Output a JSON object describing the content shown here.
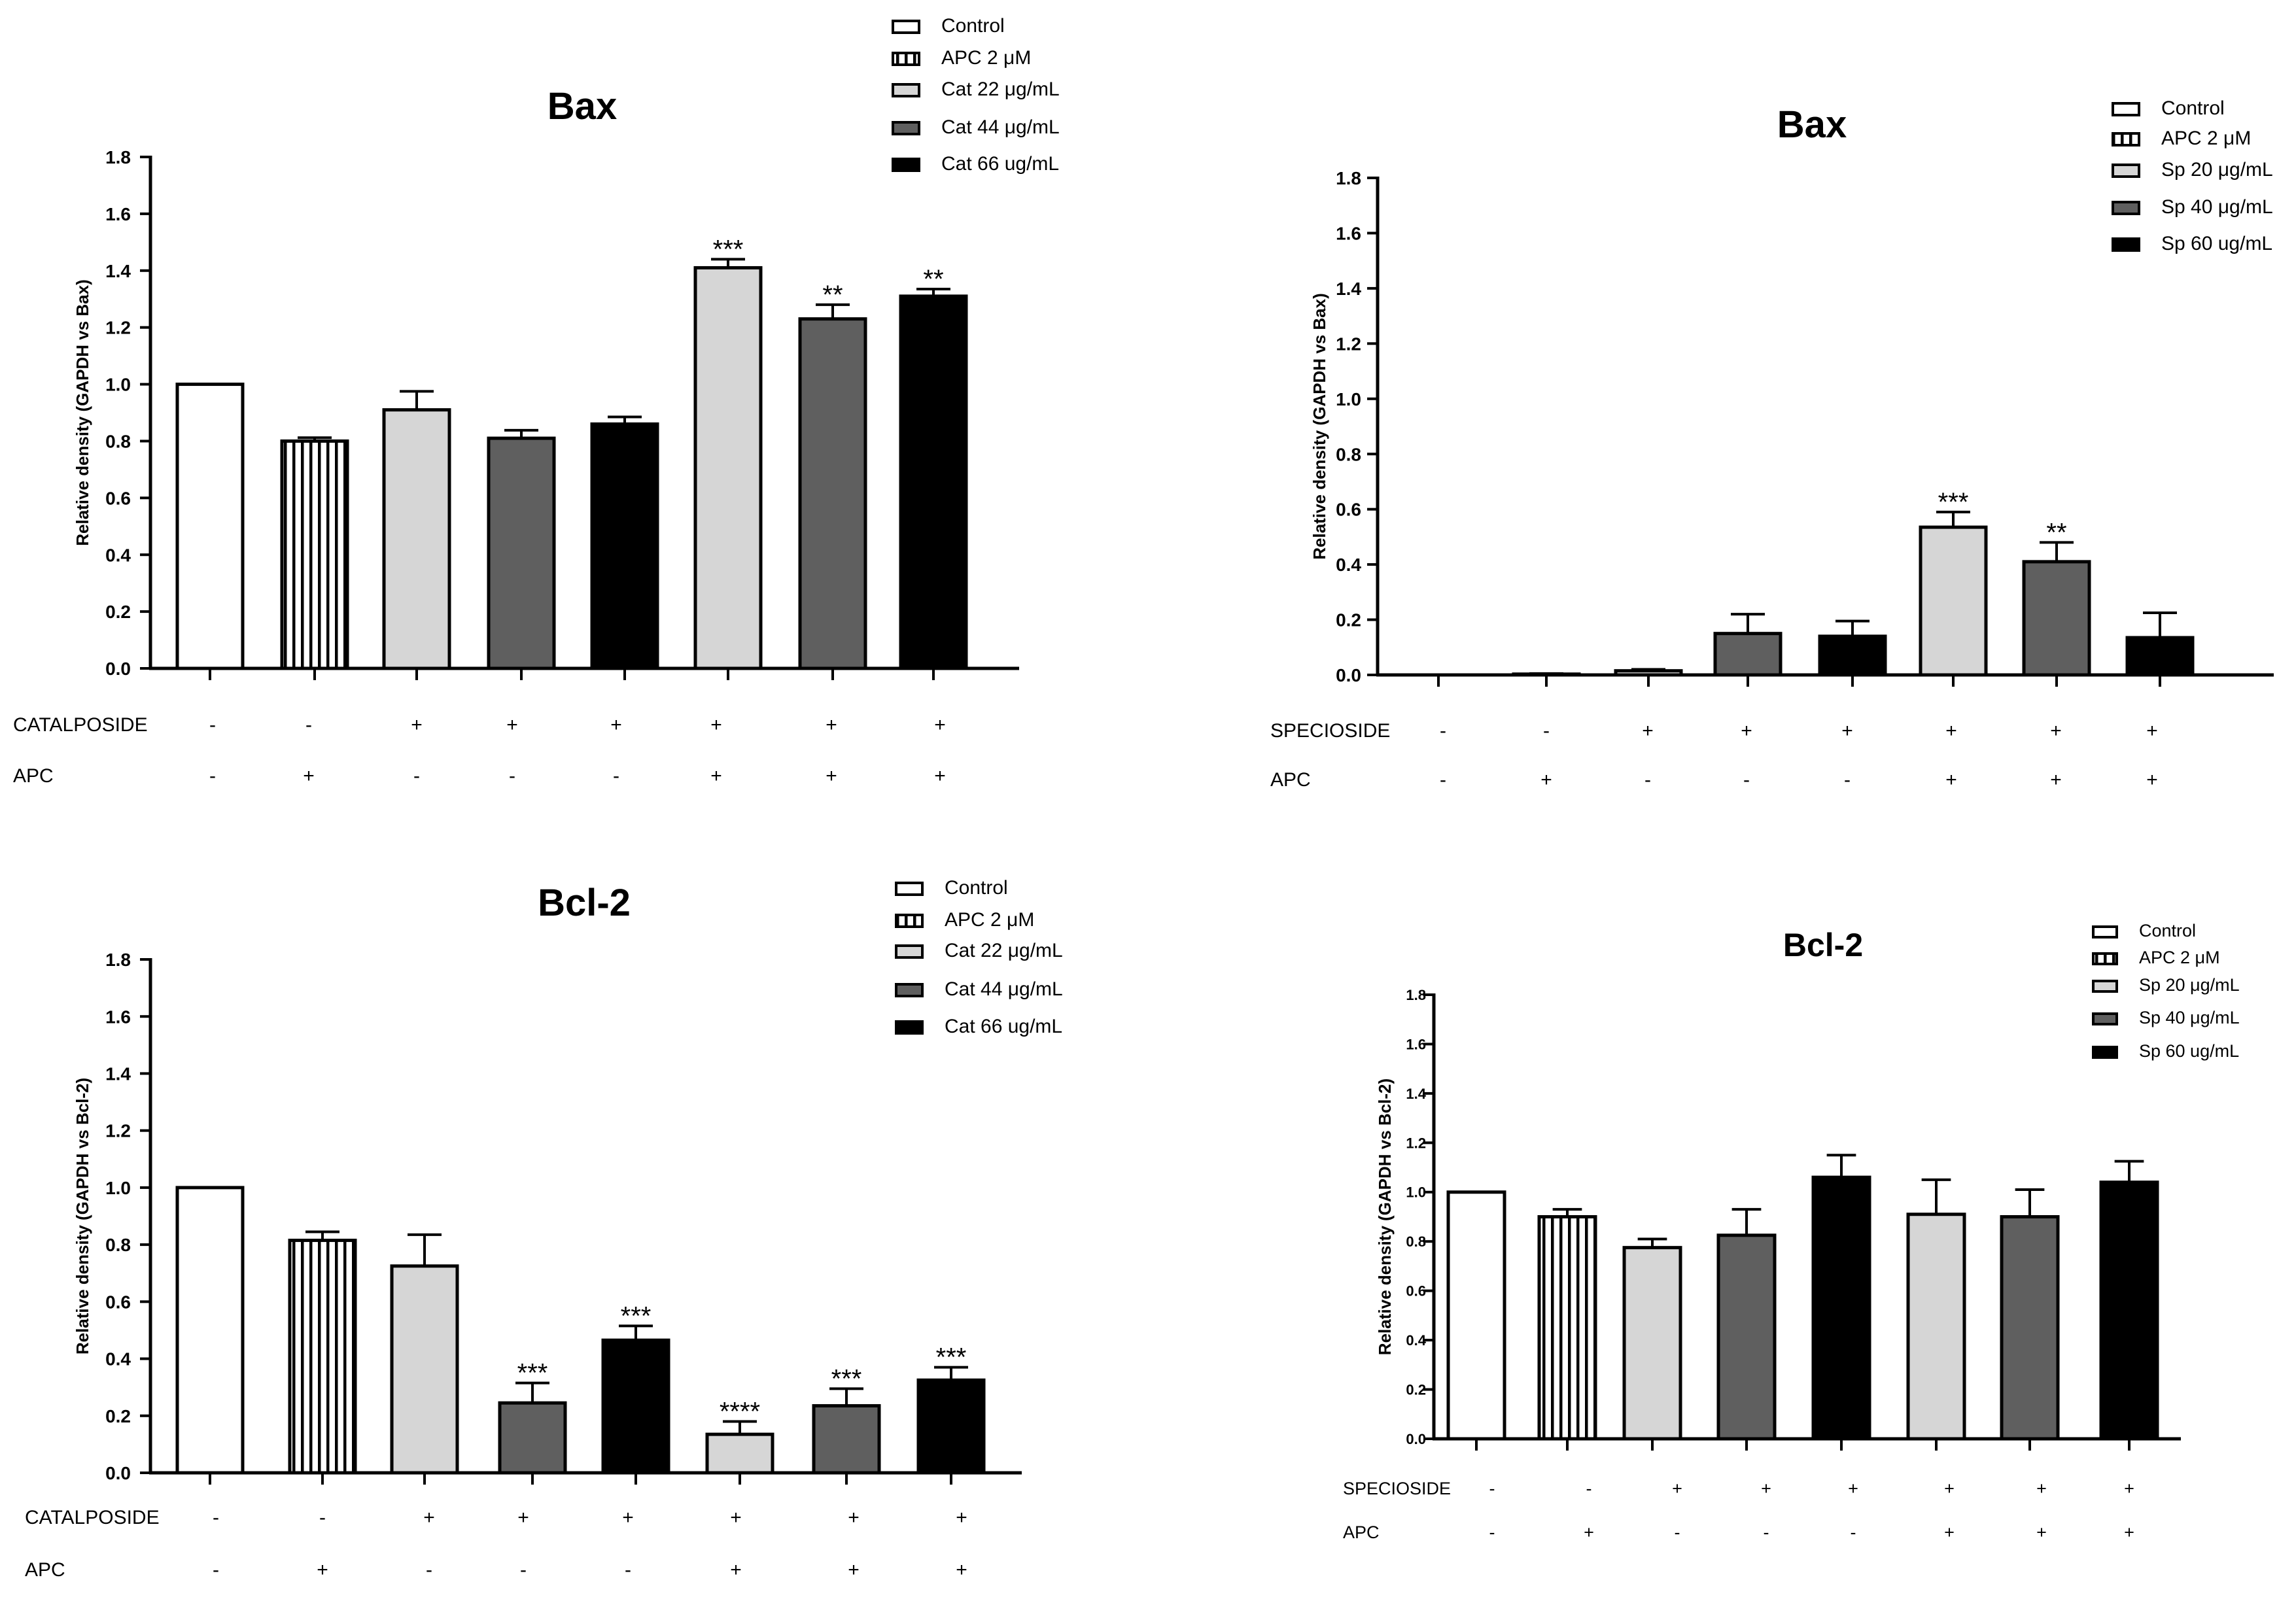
{
  "colors": {
    "control": "#ffffff",
    "apc": "#ffffff",
    "low": "#d6d6d6",
    "mid": "#5f5f5f",
    "high": "#000000",
    "axis": "#000000"
  },
  "chart_data": [
    {
      "type": "bar",
      "title": "Bax",
      "ylabel": "Relative density (GAPDH vs Bax)",
      "ylim": [
        0,
        1.8
      ],
      "yticks": [
        "0.0",
        "0.2",
        "0.4",
        "0.6",
        "0.8",
        "1.0",
        "1.2",
        "1.4",
        "1.6",
        "1.8"
      ],
      "legend": [
        {
          "label": "Control",
          "style": "control"
        },
        {
          "label": "APC 2 μM",
          "style": "apc"
        },
        {
          "label": "Cat 22 μg/mL",
          "style": "low"
        },
        {
          "label": "Cat 44 μg/mL",
          "style": "mid"
        },
        {
          "label": "Cat 66 ug/mL",
          "style": "high"
        }
      ],
      "row_labels": [
        "CATALPOSIDE",
        "APC"
      ],
      "rows": [
        [
          "-",
          "-",
          "+",
          "+",
          "+",
          "+",
          "+",
          "+"
        ],
        [
          "-",
          "+",
          "-",
          "-",
          "-",
          "+",
          "+",
          "+"
        ]
      ],
      "styles": [
        "control",
        "apc",
        "low",
        "mid",
        "high",
        "low",
        "mid",
        "high"
      ],
      "values": [
        1.0,
        0.8,
        0.91,
        0.81,
        0.86,
        1.41,
        1.23,
        1.31
      ],
      "errors": [
        0.0,
        0.012,
        0.065,
        0.028,
        0.025,
        0.03,
        0.05,
        0.025
      ],
      "annotations": [
        "",
        "",
        "",
        "",
        "",
        "***",
        "**",
        "**"
      ]
    },
    {
      "type": "bar",
      "title": "Bax",
      "ylabel": "Relative density (GAPDH vs Bax)",
      "ylim": [
        0,
        1.8
      ],
      "yticks": [
        "0.0",
        "0.2",
        "0.4",
        "0.6",
        "0.8",
        "1.0",
        "1.2",
        "1.4",
        "1.6",
        "1.8"
      ],
      "legend": [
        {
          "label": "Control",
          "style": "control"
        },
        {
          "label": "APC 2 μM",
          "style": "apc"
        },
        {
          "label": "Sp 20 μg/mL",
          "style": "low"
        },
        {
          "label": "Sp 40 μg/mL",
          "style": "mid"
        },
        {
          "label": "Sp 60 ug/mL",
          "style": "high"
        }
      ],
      "row_labels": [
        "SPECIOSIDE",
        "APC"
      ],
      "rows": [
        [
          "-",
          "-",
          "+",
          "+",
          "+",
          "+",
          "+",
          "+"
        ],
        [
          "-",
          "+",
          "-",
          "-",
          "-",
          "+",
          "+",
          "+"
        ]
      ],
      "styles": [
        "control",
        "apc",
        "low",
        "mid",
        "high",
        "low",
        "mid",
        "high"
      ],
      "values": [
        0.0,
        0.003,
        0.015,
        0.15,
        0.14,
        0.535,
        0.41,
        0.135
      ],
      "errors": [
        0.0,
        0.002,
        0.005,
        0.07,
        0.055,
        0.055,
        0.07,
        0.09
      ],
      "annotations": [
        "",
        "",
        "",
        "",
        "",
        "***",
        "**",
        ""
      ]
    },
    {
      "type": "bar",
      "title": "Bcl-2",
      "ylabel": "Relative density (GAPDH vs Bcl-2)",
      "ylim": [
        0,
        1.8
      ],
      "yticks": [
        "0.0",
        "0.2",
        "0.4",
        "0.6",
        "0.8",
        "1.0",
        "1.2",
        "1.4",
        "1.6",
        "1.8"
      ],
      "legend": [
        {
          "label": "Control",
          "style": "control"
        },
        {
          "label": "APC 2 μM",
          "style": "apc"
        },
        {
          "label": "Cat 22 μg/mL",
          "style": "low"
        },
        {
          "label": "Cat 44 μg/mL",
          "style": "mid"
        },
        {
          "label": "Cat 66 ug/mL",
          "style": "high"
        }
      ],
      "row_labels": [
        "CATALPOSIDE",
        "APC"
      ],
      "rows": [
        [
          "-",
          "-",
          "+",
          "+",
          "+",
          "+",
          "+",
          "+"
        ],
        [
          "-",
          "+",
          "-",
          "-",
          "-",
          "+",
          "+",
          "+"
        ]
      ],
      "styles": [
        "control",
        "apc",
        "low",
        "mid",
        "high",
        "low",
        "mid",
        "high"
      ],
      "values": [
        1.0,
        0.815,
        0.725,
        0.245,
        0.465,
        0.135,
        0.235,
        0.325
      ],
      "errors": [
        0.0,
        0.03,
        0.11,
        0.07,
        0.05,
        0.045,
        0.06,
        0.045
      ],
      "annotations": [
        "",
        "",
        "",
        "***",
        "***",
        "****",
        "***",
        "***"
      ]
    },
    {
      "type": "bar",
      "title": "Bcl-2",
      "ylabel": "Relative density (GAPDH vs Bcl-2)",
      "ylim": [
        0,
        1.8
      ],
      "yticks": [
        "0.0",
        "0.2",
        "0.4",
        "0.6",
        "0.8",
        "1.0",
        "1.2",
        "1.4",
        "1.6",
        "1.8"
      ],
      "legend": [
        {
          "label": "Control",
          "style": "control"
        },
        {
          "label": "APC 2 μM",
          "style": "apc"
        },
        {
          "label": "Sp 20 μg/mL",
          "style": "low"
        },
        {
          "label": "Sp 40 μg/mL",
          "style": "mid"
        },
        {
          "label": "Sp 60 ug/mL",
          "style": "high"
        }
      ],
      "row_labels": [
        "SPECIOSIDE",
        "APC"
      ],
      "rows": [
        [
          "-",
          "-",
          "+",
          "+",
          "+",
          "+",
          "+",
          "+"
        ],
        [
          "-",
          "+",
          "-",
          "-",
          "-",
          "+",
          "+",
          "+"
        ]
      ],
      "styles": [
        "control",
        "apc",
        "low",
        "mid",
        "high",
        "low",
        "mid",
        "high"
      ],
      "values": [
        1.0,
        0.9,
        0.775,
        0.825,
        1.06,
        0.91,
        0.9,
        1.04
      ],
      "errors": [
        0.0,
        0.03,
        0.035,
        0.105,
        0.09,
        0.14,
        0.11,
        0.085
      ],
      "annotations": [
        "",
        "",
        "",
        "",
        "",
        "",
        "",
        ""
      ]
    }
  ]
}
